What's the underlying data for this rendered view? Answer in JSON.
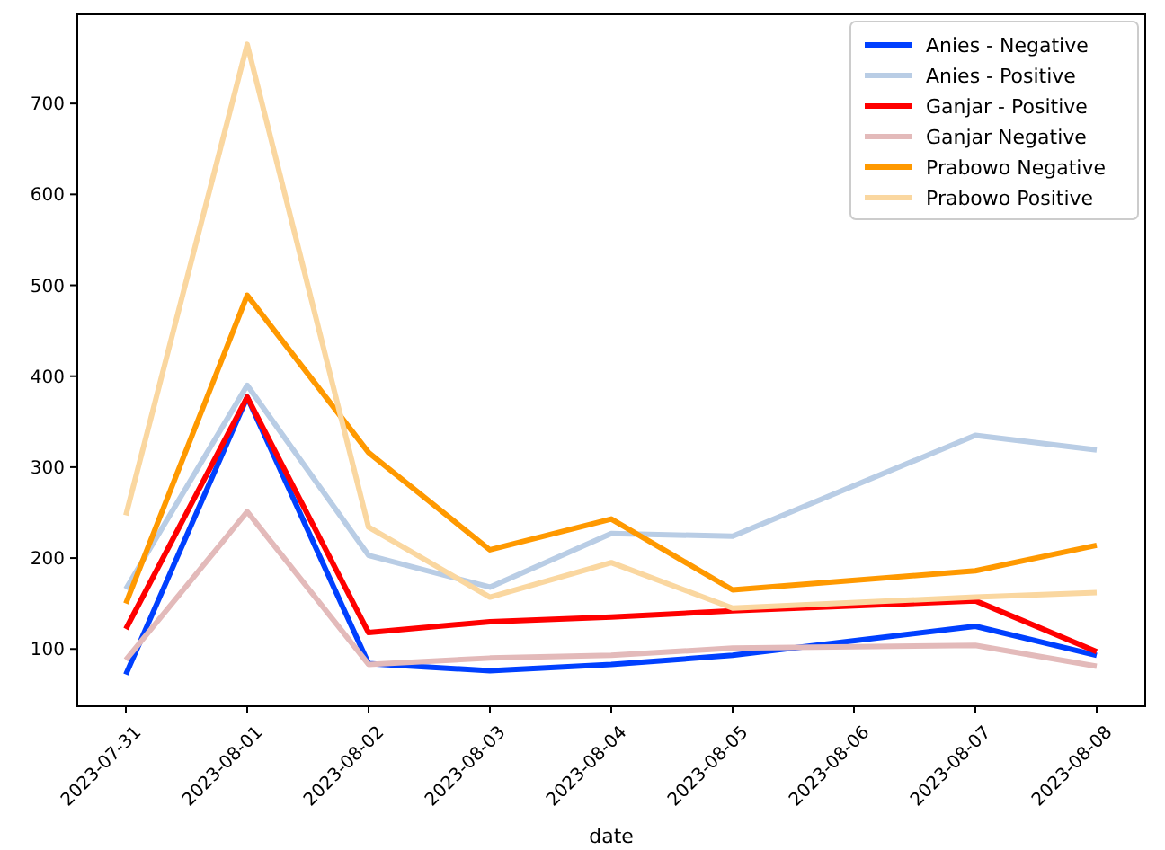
{
  "chart_data": {
    "type": "line",
    "xlabel": "date",
    "x": [
      "2023-07-31",
      "2023-08-01",
      "2023-08-02",
      "2023-08-03",
      "2023-08-04",
      "2023-08-05",
      "2023-08-07",
      "2023-08-08"
    ],
    "xlim": [
      "2023-07-30T14:24",
      "2023-08-08T09:36"
    ],
    "xticks": [
      {
        "value": "2023-07-31",
        "label": "2023-07-31"
      },
      {
        "value": "2023-08-01",
        "label": "2023-08-01"
      },
      {
        "value": "2023-08-02",
        "label": "2023-08-02"
      },
      {
        "value": "2023-08-03",
        "label": "2023-08-03"
      },
      {
        "value": "2023-08-04",
        "label": "2023-08-04"
      },
      {
        "value": "2023-08-05",
        "label": "2023-08-05"
      },
      {
        "value": "2023-08-06",
        "label": "2023-08-06"
      },
      {
        "value": "2023-08-07",
        "label": "2023-08-07"
      },
      {
        "value": "2023-08-08",
        "label": "2023-08-08"
      }
    ],
    "ylim": [
      37,
      798
    ],
    "yticks": [
      100,
      200,
      300,
      400,
      500,
      600,
      700
    ],
    "legend": "top right",
    "grid": false,
    "series": [
      {
        "name": "Anies - Negative",
        "color": "#0040ff",
        "values": [
          72,
          377,
          84,
          76,
          83,
          93,
          125,
          93
        ]
      },
      {
        "name": "Anies - Positive",
        "color": "#b9cde5",
        "values": [
          166,
          390,
          203,
          168,
          227,
          224,
          335,
          319
        ]
      },
      {
        "name": "Ganjar - Positive",
        "color": "#ff0000",
        "values": [
          122,
          377,
          118,
          130,
          135,
          142,
          153,
          97
        ]
      },
      {
        "name": "Ganjar Negative",
        "color": "#e3baba",
        "values": [
          88,
          251,
          83,
          90,
          93,
          101,
          104,
          81
        ]
      },
      {
        "name": "Prabowo Negative",
        "color": "#ff9900",
        "values": [
          150,
          489,
          316,
          209,
          243,
          165,
          186,
          214
        ]
      },
      {
        "name": "Prabowo Positive",
        "color": "#fad7a0",
        "values": [
          247,
          765,
          234,
          157,
          195,
          145,
          157,
          162
        ]
      }
    ]
  }
}
